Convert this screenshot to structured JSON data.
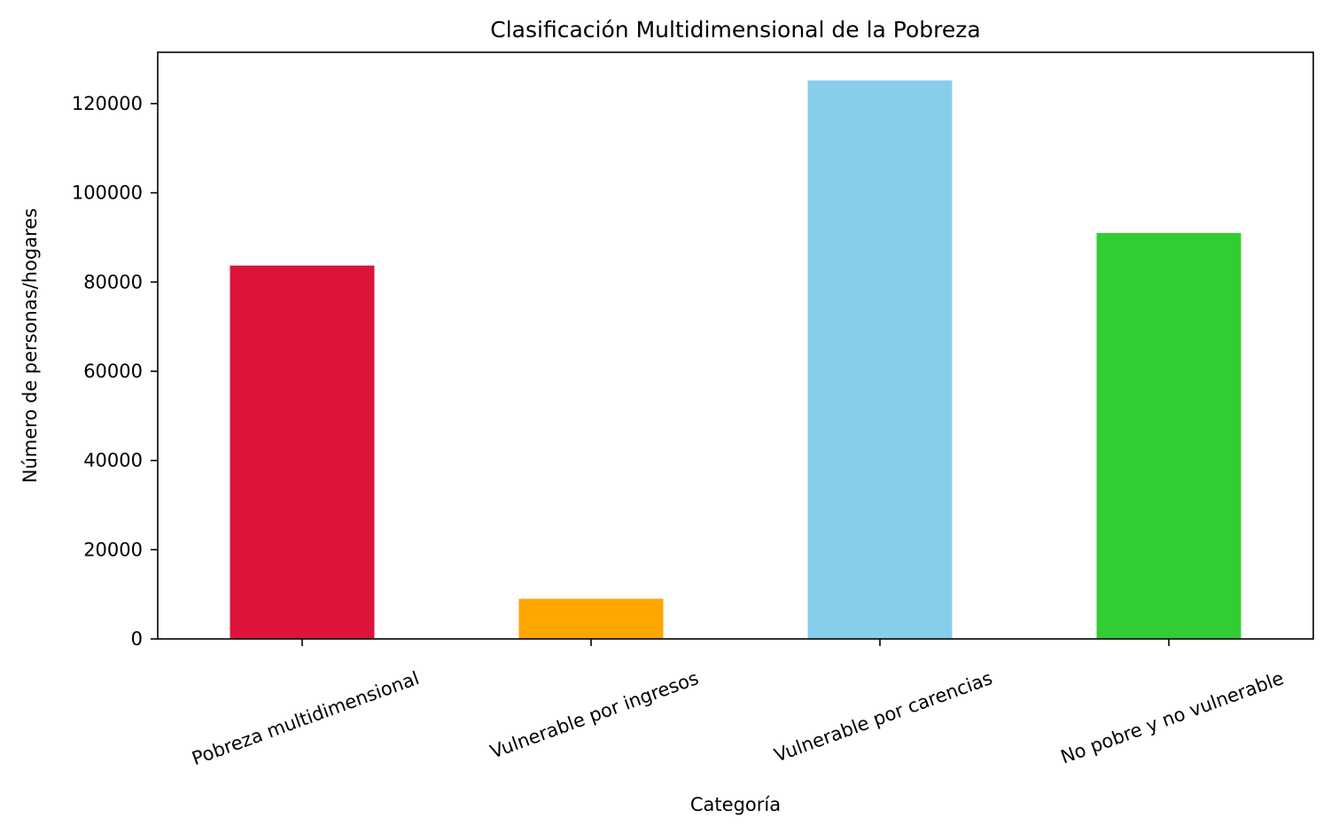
{
  "chart_data": {
    "type": "bar",
    "title": "Clasificación Multidimensional de la Pobreza",
    "xlabel": "Categoría",
    "ylabel": "Número de personas/hogares",
    "categories": [
      "Pobreza multidimensional",
      "Vulnerable por ingresos",
      "Vulnerable por carencias",
      "No pobre y no vulnerable"
    ],
    "values": [
      83700,
      9000,
      125200,
      91000
    ],
    "colors": [
      "#dc143c",
      "#ffa500",
      "#87ceeb",
      "#32cd32"
    ],
    "ylim": [
      0,
      131500
    ],
    "yticks": [
      0,
      20000,
      40000,
      60000,
      80000,
      100000,
      120000
    ],
    "grid": false,
    "legend": "none"
  }
}
